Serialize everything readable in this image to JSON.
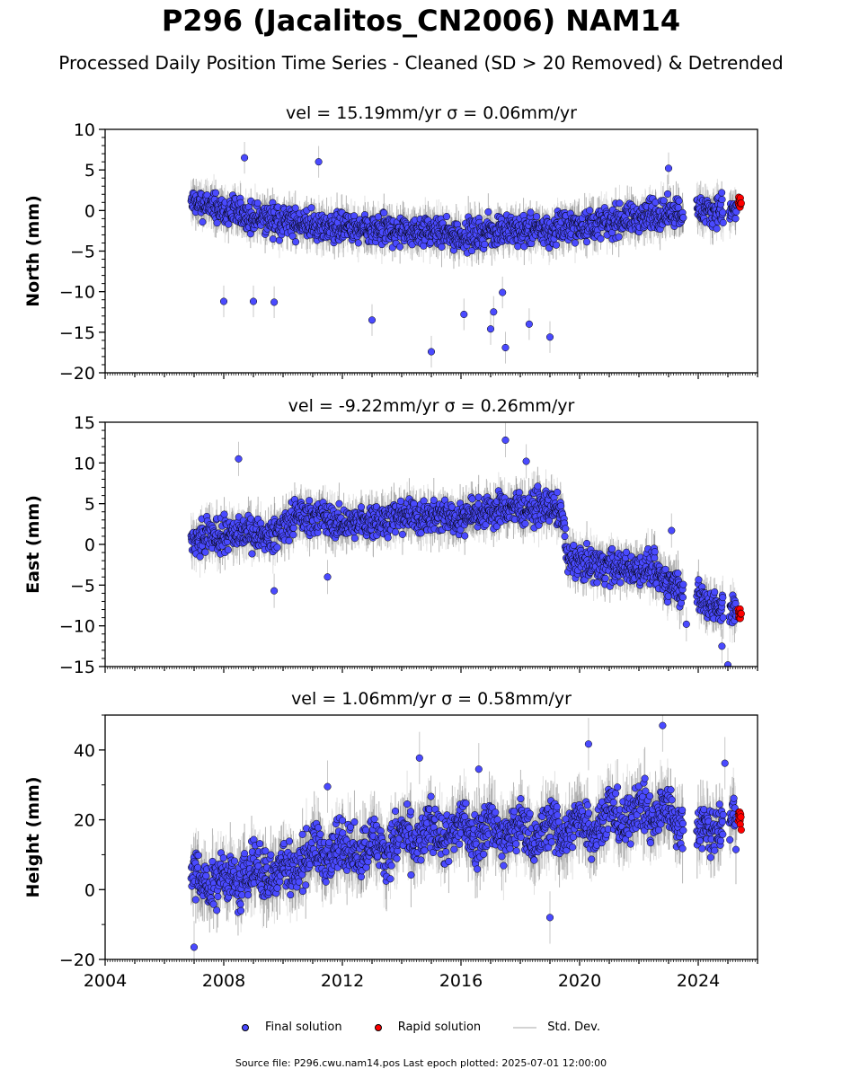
{
  "title": "P296 (Jacalitos_CN2006) NAM14",
  "subtitle": "Processed Daily Position Time Series - Cleaned (SD > 20 Removed) & Detrended",
  "footer": "Source file: P296.cwu.nam14.pos  Last epoch plotted: 2025-07-01 12:00:00",
  "legend": {
    "final": "Final solution",
    "rapid": "Rapid solution",
    "stddev": "Std. Dev."
  },
  "colors": {
    "final": "#4a4aff",
    "rapid": "#ff0000",
    "stddev": "#b0b0b0",
    "marker_edge": "#000000"
  },
  "chart_data": [
    {
      "type": "scatter",
      "panel": "north",
      "title": "vel = 15.19mm/yr   σ = 0.06mm/yr",
      "ylabel": "North (mm)",
      "xlim": [
        2004,
        2026
      ],
      "ylim": [
        -20,
        10
      ],
      "yticks": [
        -20,
        -15,
        -10,
        -5,
        0,
        5,
        10
      ],
      "xticks": [
        2004,
        2008,
        2012,
        2016,
        2020,
        2024
      ],
      "series": [
        {
          "name": "Final solution",
          "x": [
            2006.9,
            2007.5,
            2008.0,
            2008.5,
            2009.0,
            2009.5,
            2010.0,
            2010.5,
            2011.0,
            2011.5,
            2012.0,
            2012.5,
            2013.0,
            2013.5,
            2014.0,
            2014.5,
            2015.0,
            2015.5,
            2016.0,
            2016.5,
            2017.0,
            2017.5,
            2018.0,
            2018.5,
            2019.0,
            2019.5,
            2020.0,
            2020.5,
            2021.0,
            2021.5,
            2022.0,
            2022.5,
            2022.9,
            2023.3,
            2024.0,
            2024.5,
            2025.0
          ],
          "y": [
            1.0,
            0.5,
            0.0,
            -0.5,
            -1.0,
            -1.0,
            -1.5,
            -1.5,
            -2.0,
            -2.0,
            -2.0,
            -2.5,
            -2.5,
            -2.5,
            -2.5,
            -2.5,
            -2.5,
            -3.0,
            -3.0,
            -3.0,
            -2.5,
            -2.5,
            -2.5,
            -2.5,
            -2.5,
            -2.0,
            -2.0,
            -1.5,
            -1.5,
            -1.0,
            -1.0,
            -0.5,
            -0.5,
            0.0,
            0.0,
            0.0,
            0.0
          ]
        },
        {
          "name": "Rapid solution",
          "x": [
            2025.35,
            2025.45
          ],
          "y": [
            1.0,
            1.0
          ]
        }
      ],
      "outliers": [
        {
          "x": 2008.7,
          "y": 6.5
        },
        {
          "x": 2011.2,
          "y": 6.0
        },
        {
          "x": 2023.0,
          "y": 5.2
        },
        {
          "x": 2008.0,
          "y": -11.2
        },
        {
          "x": 2009.0,
          "y": -11.2
        },
        {
          "x": 2009.7,
          "y": -11.3
        },
        {
          "x": 2013.0,
          "y": -13.5
        },
        {
          "x": 2015.0,
          "y": -17.4
        },
        {
          "x": 2016.1,
          "y": -12.8
        },
        {
          "x": 2017.0,
          "y": -14.6
        },
        {
          "x": 2017.5,
          "y": -16.9
        },
        {
          "x": 2018.3,
          "y": -14.0
        },
        {
          "x": 2019.0,
          "y": -15.6
        },
        {
          "x": 2017.1,
          "y": -12.5
        },
        {
          "x": 2017.4,
          "y": -10.1
        }
      ]
    },
    {
      "type": "scatter",
      "panel": "east",
      "title": "vel = -9.22mm/yr   σ = 0.26mm/yr",
      "ylabel": "East (mm)",
      "xlim": [
        2004,
        2026
      ],
      "ylim": [
        -15,
        15
      ],
      "yticks": [
        -15,
        -10,
        -5,
        0,
        5,
        10,
        15
      ],
      "xticks": [
        2004,
        2008,
        2012,
        2016,
        2020,
        2024
      ],
      "series": [
        {
          "name": "Final solution",
          "x": [
            2006.9,
            2007.5,
            2008.0,
            2008.5,
            2009.0,
            2009.5,
            2010.0,
            2010.5,
            2011.0,
            2011.5,
            2012.0,
            2012.5,
            2013.0,
            2013.5,
            2014.0,
            2014.5,
            2015.0,
            2015.5,
            2016.0,
            2016.5,
            2017.0,
            2017.5,
            2018.0,
            2018.5,
            2019.0,
            2019.4,
            2019.6,
            2020.0,
            2020.5,
            2021.0,
            2021.5,
            2022.0,
            2022.5,
            2022.9,
            2023.3,
            2024.2,
            2024.6,
            2025.0
          ],
          "y": [
            0.0,
            1.0,
            1.0,
            1.5,
            1.5,
            1.0,
            2.0,
            3.5,
            3.5,
            3.0,
            2.5,
            2.5,
            3.0,
            3.0,
            3.5,
            3.5,
            3.5,
            3.5,
            3.0,
            4.0,
            4.0,
            4.5,
            4.5,
            4.5,
            4.5,
            4.0,
            -2.0,
            -2.0,
            -2.5,
            -2.5,
            -3.0,
            -3.0,
            -3.0,
            -4.5,
            -5.0,
            -7.0,
            -7.5,
            -8.0
          ]
        },
        {
          "name": "Rapid solution",
          "x": [
            2025.35,
            2025.45
          ],
          "y": [
            -8.5,
            -8.5
          ]
        }
      ],
      "outliers": [
        {
          "x": 2008.5,
          "y": 10.5
        },
        {
          "x": 2017.5,
          "y": 12.8
        },
        {
          "x": 2018.2,
          "y": 10.2
        },
        {
          "x": 2009.7,
          "y": -5.7
        },
        {
          "x": 2024.8,
          "y": -12.5
        },
        {
          "x": 2025.0,
          "y": -14.8
        },
        {
          "x": 2023.1,
          "y": 1.7
        },
        {
          "x": 2023.6,
          "y": -9.8
        },
        {
          "x": 2011.5,
          "y": -4.0
        }
      ]
    },
    {
      "type": "scatter",
      "panel": "height",
      "title": "vel = 1.06mm/yr   σ = 0.58mm/yr",
      "ylabel": "Height (mm)",
      "xlim": [
        2004,
        2026
      ],
      "ylim": [
        -20,
        50
      ],
      "yticks": [
        -20,
        0,
        20,
        40
      ],
      "xticks": [
        2004,
        2008,
        2012,
        2016,
        2020,
        2024
      ],
      "series": [
        {
          "name": "Final solution",
          "x": [
            2006.9,
            2007.5,
            2008.0,
            2008.5,
            2009.0,
            2009.5,
            2010.0,
            2010.5,
            2011.0,
            2011.5,
            2012.0,
            2012.5,
            2013.0,
            2013.5,
            2014.0,
            2014.5,
            2015.0,
            2015.5,
            2016.0,
            2016.5,
            2017.0,
            2017.5,
            2018.0,
            2018.5,
            2019.0,
            2019.5,
            2020.0,
            2020.5,
            2021.0,
            2021.5,
            2022.0,
            2022.5,
            2022.9,
            2023.3,
            2024.0,
            2024.5,
            2025.0
          ],
          "y": [
            5,
            0,
            5,
            0,
            7,
            2,
            8,
            5,
            13,
            8,
            14,
            9,
            15,
            10,
            17,
            12,
            19,
            13,
            20,
            14,
            20,
            14,
            19,
            13,
            20,
            14,
            22,
            16,
            24,
            18,
            25,
            19,
            25,
            18,
            20,
            16,
            20
          ]
        },
        {
          "name": "Rapid solution",
          "x": [
            2025.35,
            2025.45
          ],
          "y": [
            20,
            20
          ]
        }
      ],
      "outliers": [
        {
          "x": 2022.8,
          "y": 47.0
        },
        {
          "x": 2020.3,
          "y": 41.7
        },
        {
          "x": 2014.6,
          "y": 37.7
        },
        {
          "x": 2016.6,
          "y": 34.5
        },
        {
          "x": 2007.0,
          "y": -16.5
        },
        {
          "x": 2019.0,
          "y": -8.0
        },
        {
          "x": 2011.5,
          "y": 29.5
        },
        {
          "x": 2024.9,
          "y": 36.2
        }
      ]
    }
  ]
}
